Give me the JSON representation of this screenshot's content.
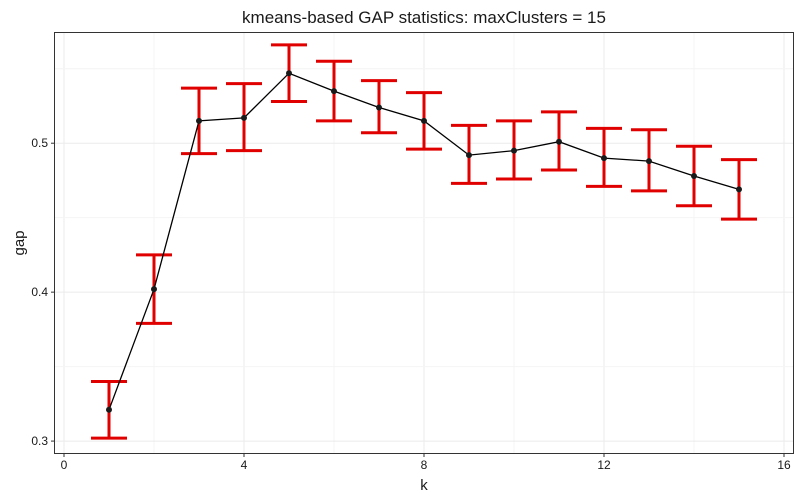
{
  "chart_data": {
    "type": "line",
    "title": "kmeans-based GAP statistics: maxClusters = 15",
    "xlabel": "k",
    "ylabel": "gap",
    "xlim": [
      -0.2,
      16.2
    ],
    "ylim": [
      0.292,
      0.574
    ],
    "xticks": [
      0,
      4,
      8,
      12,
      16
    ],
    "yticks": [
      0.3,
      0.4,
      0.5
    ],
    "ytick_labels": [
      "0.3",
      "0.4",
      "0.5"
    ],
    "grid": true,
    "legend": "none",
    "series": [
      {
        "x": [
          1,
          2,
          3,
          4,
          5,
          6,
          7,
          8,
          9,
          10,
          11,
          12,
          13,
          14,
          15
        ],
        "y": [
          0.321,
          0.402,
          0.515,
          0.517,
          0.547,
          0.535,
          0.524,
          0.515,
          0.492,
          0.495,
          0.501,
          0.49,
          0.488,
          0.478,
          0.469
        ],
        "error_lower": [
          0.302,
          0.379,
          0.493,
          0.495,
          0.528,
          0.515,
          0.507,
          0.496,
          0.473,
          0.476,
          0.482,
          0.471,
          0.468,
          0.458,
          0.449
        ],
        "error_upper": [
          0.34,
          0.425,
          0.537,
          0.54,
          0.566,
          0.555,
          0.542,
          0.534,
          0.512,
          0.515,
          0.521,
          0.51,
          0.509,
          0.498,
          0.489
        ]
      }
    ],
    "colors": {
      "line": "#000000",
      "points": "#1a1a1a",
      "error_bars": "#e00000",
      "grid": "#ebebeb",
      "panel_border": "#333333"
    }
  }
}
